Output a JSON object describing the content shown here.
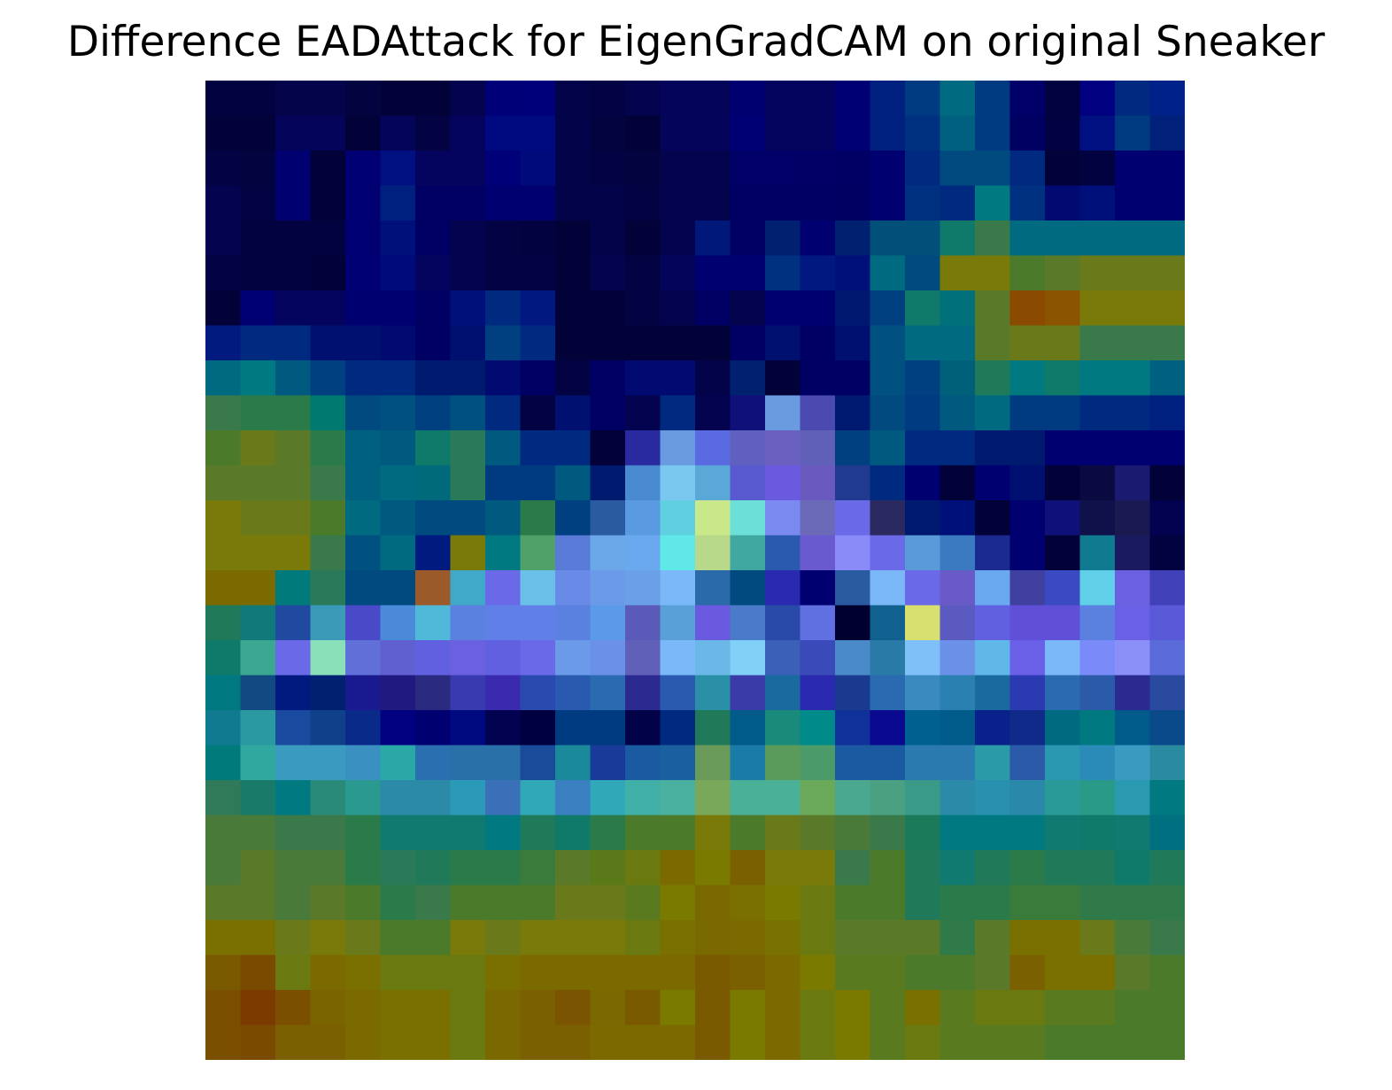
{
  "figure": {
    "title": "Difference EADAttack for EigenGradCAM on original Sneaker"
  },
  "image": {
    "grid_rows": 28,
    "grid_cols": 28,
    "palette": {
      "dark_navy": "#05053f",
      "navy": "#000070",
      "deep_blue": "#002a80",
      "teal_blue": "#005a80",
      "teal": "#007a80",
      "sea_green": "#2a7a5a",
      "olive_green": "#5a7a2a",
      "olive": "#7a7a0a",
      "ochre": "#8a6400",
      "brown": "#8a4400",
      "cornflower": "#6a90e0",
      "violet": "#6a60e0",
      "sky": "#7ac0f0",
      "cyan": "#60e0e8",
      "pale_yellow": "#d8e070",
      "aqua_green": "#40b0a0"
    },
    "rows": [
      [
        "#020240",
        "#020240",
        "#04044a",
        "#04044a",
        "#030340",
        "#020238",
        "#020238",
        "#04044e",
        "#000078",
        "#00007a",
        "#03034a",
        "#030344",
        "#04044e",
        "#04045a",
        "#04045a",
        "#000070",
        "#04045e",
        "#04045e",
        "#000074",
        "#002080",
        "#003a80",
        "#006a80",
        "#003a80",
        "#000068",
        "#020240",
        "#000080",
        "#002a80",
        "#00208a"
      ],
      [
        "#020238",
        "#020238",
        "#04045a",
        "#04045a",
        "#020238",
        "#04045a",
        "#030344",
        "#04045e",
        "#000a80",
        "#000a80",
        "#03034a",
        "#030340",
        "#020238",
        "#04045a",
        "#04045a",
        "#000074",
        "#04045e",
        "#04045e",
        "#000074",
        "#002080",
        "#003080",
        "#006080",
        "#003a80",
        "#000062",
        "#020242",
        "#001080",
        "#003a80",
        "#00207a"
      ],
      [
        "#030344",
        "#030340",
        "#000070",
        "#020238",
        "#000072",
        "#001080",
        "#04045e",
        "#04045e",
        "#000078",
        "#000a7a",
        "#03034a",
        "#030344",
        "#030340",
        "#04044e",
        "#04044e",
        "#000068",
        "#000068",
        "#000066",
        "#000064",
        "#000070",
        "#002a80",
        "#004a80",
        "#004a80",
        "#002a80",
        "#020238",
        "#020240",
        "#000070",
        "#000070"
      ],
      [
        "#030350",
        "#030344",
        "#000070",
        "#020238",
        "#000072",
        "#002080",
        "#000064",
        "#000064",
        "#000070",
        "#000070",
        "#03034a",
        "#03034a",
        "#030344",
        "#04044e",
        "#04044e",
        "#000064",
        "#000064",
        "#000064",
        "#000062",
        "#000070",
        "#003080",
        "#002a80",
        "#007a80",
        "#003080",
        "#000a70",
        "#00107a",
        "#000070",
        "#000070"
      ],
      [
        "#030350",
        "#020240",
        "#020240",
        "#020240",
        "#000072",
        "#00107a",
        "#000064",
        "#04044e",
        "#030344",
        "#020240",
        "#020238",
        "#03034a",
        "#020238",
        "#04044e",
        "#00187a",
        "#000064",
        "#002070",
        "#000070",
        "#002070",
        "#00507a",
        "#00507a",
        "#107a6a",
        "#3a7a4a",
        "#006a80",
        "#006a80",
        "#006a80",
        "#006a80",
        "#006a80"
      ],
      [
        "#030344",
        "#020240",
        "#020240",
        "#020238",
        "#000072",
        "#000a7a",
        "#04045e",
        "#04044e",
        "#030344",
        "#030344",
        "#020238",
        "#04044e",
        "#030344",
        "#04045a",
        "#000070",
        "#000070",
        "#003080",
        "#001880",
        "#00107a",
        "#006a80",
        "#004a80",
        "#7a7a0a",
        "#7a7a0a",
        "#4a7a2a",
        "#5a7a2a",
        "#6a7a1a",
        "#6a7a1a",
        "#6a7a1a"
      ],
      [
        "#020238",
        "#000072",
        "#04045e",
        "#04045e",
        "#000070",
        "#000070",
        "#000064",
        "#00107a",
        "#002a80",
        "#001880",
        "#020238",
        "#020238",
        "#030344",
        "#04044e",
        "#000064",
        "#04044e",
        "#000070",
        "#000070",
        "#001870",
        "#004080",
        "#107a6a",
        "#00707a",
        "#5a7a2a",
        "#8a4a00",
        "#8a5400",
        "#7a7a0a",
        "#7a7a0a",
        "#7a7a0a"
      ],
      [
        "#001a80",
        "#002a80",
        "#002a80",
        "#001070",
        "#001070",
        "#000a70",
        "#000064",
        "#001070",
        "#004080",
        "#002a80",
        "#020238",
        "#020238",
        "#020238",
        "#020238",
        "#020238",
        "#000064",
        "#001070",
        "#000064",
        "#001070",
        "#005080",
        "#006a80",
        "#006a80",
        "#5a7a2a",
        "#6a7a1a",
        "#6a7a1a",
        "#3a7a4a",
        "#3a7a4a",
        "#3a7a4a"
      ],
      [
        "#006a80",
        "#007a80",
        "#005a80",
        "#004080",
        "#002a80",
        "#002a80",
        "#001a70",
        "#001a70",
        "#000a70",
        "#000064",
        "#030344",
        "#000064",
        "#000a70",
        "#000a70",
        "#03034a",
        "#002070",
        "#020238",
        "#000064",
        "#000064",
        "#005080",
        "#004080",
        "#00607a",
        "#207a5a",
        "#007a80",
        "#107a6a",
        "#007a80",
        "#007a80",
        "#006080"
      ],
      [
        "#3a7a4a",
        "#2a7a4a",
        "#2a7a4a",
        "#007a70",
        "#004a80",
        "#005080",
        "#004080",
        "#005080",
        "#002a80",
        "#030344",
        "#001070",
        "#000064",
        "#030350",
        "#002a80",
        "#030350",
        "#10107a",
        "#6a9ae0",
        "#4a4ab0",
        "#001a70",
        "#004a80",
        "#003a80",
        "#005a80",
        "#006a80",
        "#003a80",
        "#003a80",
        "#002a80",
        "#002a80",
        "#002080"
      ],
      [
        "#4a7a2a",
        "#6a7a1a",
        "#5a7a2a",
        "#2a7a4a",
        "#006080",
        "#005a80",
        "#107a6a",
        "#2a7a5a",
        "#005a80",
        "#002a80",
        "#002a80",
        "#020238",
        "#2a2aa0",
        "#6a9ae0",
        "#5a6ae0",
        "#6060c0",
        "#6a60c0",
        "#6060b8",
        "#004080",
        "#005a80",
        "#002a80",
        "#002a80",
        "#001a70",
        "#001a70",
        "#000070",
        "#000070",
        "#000070",
        "#000070"
      ],
      [
        "#5a7a2a",
        "#5a7a2a",
        "#5a7a2a",
        "#3a7a4a",
        "#006080",
        "#006a80",
        "#006a7a",
        "#2a7a5a",
        "#003a80",
        "#003a80",
        "#005a80",
        "#001a70",
        "#4a8ad0",
        "#7ac8f0",
        "#5aa8d8",
        "#5a5ad0",
        "#6a5ae0",
        "#6a5ac0",
        "#203a90",
        "#002a80",
        "#000070",
        "#020238",
        "#000070",
        "#001070",
        "#020238",
        "#0a0a40",
        "#1a1a70",
        "#020238"
      ],
      [
        "#7a7a0a",
        "#6a7a1a",
        "#6a7a1a",
        "#4a7a2a",
        "#006a80",
        "#005a80",
        "#004a80",
        "#004a80",
        "#005a80",
        "#2a7a4a",
        "#004080",
        "#2a5aa0",
        "#5a9ae0",
        "#60d0e0",
        "#c8e88a",
        "#6ae0d8",
        "#7a8af0",
        "#6a6ab8",
        "#6a6ae8",
        "#2a2a60",
        "#001a70",
        "#00107a",
        "#020238",
        "#000070",
        "#10107a",
        "#10104a",
        "#1a1a50",
        "#020250"
      ],
      [
        "#7a7a0a",
        "#7a7a0a",
        "#7a7a0a",
        "#3a7a4a",
        "#005080",
        "#006a80",
        "#001a80",
        "#7a7a0a",
        "#007a80",
        "#50a06a",
        "#5a7ad8",
        "#6aa8e8",
        "#6aa8f0",
        "#60e8e8",
        "#b8d88a",
        "#40a8a0",
        "#2a5ab0",
        "#6a5ad0",
        "#8a8af8",
        "#6a6ae8",
        "#5a9ad8",
        "#3a7ac0",
        "#1a2a90",
        "#000070",
        "#020238",
        "#107a90",
        "#1a1a60",
        "#020240"
      ],
      [
        "#7a6a00",
        "#7a6a00",
        "#007a7a",
        "#2a7a5a",
        "#004a80",
        "#004a80",
        "#9a5a2a",
        "#40a8c8",
        "#6a6ae8",
        "#6ac0e8",
        "#6a8ae8",
        "#6a9ae8",
        "#6aa0e8",
        "#7ab8f8",
        "#2a6aa8",
        "#004a80",
        "#2a2ab0",
        "#000070",
        "#2a5aa0",
        "#7ab8f8",
        "#6a6ae8",
        "#6a5ac8",
        "#6aa8f0",
        "#4040a0",
        "#3a4ac0",
        "#60d0e8",
        "#6a60e0",
        "#4040b8"
      ],
      [
        "#207a5a",
        "#107a7a",
        "#204aa0",
        "#3a9ab8",
        "#4a4ac8",
        "#4a8ad8",
        "#50b8d8",
        "#5a80e0",
        "#6080e8",
        "#6080e8",
        "#5a80e0",
        "#5a9ae8",
        "#5a5ab8",
        "#5aa0d8",
        "#6a5ae0",
        "#4a7ac8",
        "#2a4aa8",
        "#6070e0",
        "#000030",
        "#106090",
        "#d8e070",
        "#5a5ac0",
        "#6060e0",
        "#6050d8",
        "#6050d8",
        "#5a80e0",
        "#6a60e8",
        "#5a5ad8"
      ],
      [
        "#107a6a",
        "#3aa890",
        "#6a6ae8",
        "#8ae0b8",
        "#6070d8",
        "#6060d0",
        "#6060e0",
        "#6a60e0",
        "#6060e0",
        "#6a6ae8",
        "#6a9ae8",
        "#6a90e8",
        "#6060b8",
        "#7ab8f8",
        "#6ab8e8",
        "#80d0f8",
        "#3a60b8",
        "#3a4ab8",
        "#4a8ac8",
        "#2a7aa8",
        "#80c0f8",
        "#6a90e8",
        "#60b8e8",
        "#6a60e8",
        "#7ab8f8",
        "#7a8af8",
        "#8a90f8",
        "#5a6ad8"
      ],
      [
        "#007a80",
        "#104a80",
        "#001a80",
        "#002070",
        "#1a1a90",
        "#201a80",
        "#2a2a80",
        "#3a3ab0",
        "#3a2ab0",
        "#2a4ab0",
        "#2a5ab0",
        "#2a6ab0",
        "#2a2a90",
        "#2a5ab0",
        "#2a90a8",
        "#3a3aa8",
        "#1a6aa0",
        "#2a2ab0",
        "#1a3a90",
        "#2a6ab0",
        "#3a8ac0",
        "#2a80b0",
        "#1a6aa0",
        "#2a3ab0",
        "#2a6ab0",
        "#2a5aa8",
        "#2a2a90",
        "#2a4aa0"
      ],
      [
        "#107a90",
        "#2a9aa0",
        "#1a4aa0",
        "#10408a",
        "#0a2a8a",
        "#000080",
        "#000070",
        "#000a80",
        "#020250",
        "#000040",
        "#003a80",
        "#003a80",
        "#020248",
        "#002a80",
        "#207a5a",
        "#005a8a",
        "#1a8a7a",
        "#008a8a",
        "#10309a",
        "#0a0a90",
        "#006090",
        "#005a8a",
        "#0a208a",
        "#102a8a",
        "#006a80",
        "#007a80",
        "#005a8a",
        "#0a4a8a"
      ],
      [
        "#007a7a",
        "#30a8a0",
        "#3a9ac0",
        "#3a9ac0",
        "#3a90c0",
        "#2aa8a8",
        "#2a70b0",
        "#2a70a8",
        "#2a70a8",
        "#1a4a9a",
        "#1a8a9a",
        "#1a3a9a",
        "#1a5aa0",
        "#1a60a0",
        "#6a9a5a",
        "#1a7aa8",
        "#5a9a5a",
        "#4a9a6a",
        "#1a5aa0",
        "#1a5aa0",
        "#2a7ab0",
        "#2a7ab0",
        "#2a9aa8",
        "#2a5aa8",
        "#2a98b0",
        "#2a8ab8",
        "#3a9ac0",
        "#2a8aa0"
      ],
      [
        "#307a5a",
        "#1a7a6a",
        "#007a80",
        "#2a8a7a",
        "#2a9a90",
        "#2a8aa8",
        "#2a8aa8",
        "#2a9ab8",
        "#3a70b8",
        "#30a8b8",
        "#3a80c0",
        "#30a8b8",
        "#40b0a8",
        "#4ab0a0",
        "#7aa85a",
        "#4ab098",
        "#4ab098",
        "#6aa85a",
        "#4aa890",
        "#4aa080",
        "#3a9a88",
        "#2a8aa8",
        "#2a90b0",
        "#2a88a8",
        "#2a9a98",
        "#2a9a88",
        "#2a9ab0",
        "#007a80"
      ],
      [
        "#4a7a3a",
        "#4a7a3a",
        "#3a7a4a",
        "#3a7a4a",
        "#2a7a4a",
        "#107a70",
        "#107a70",
        "#107a70",
        "#007a80",
        "#207a5a",
        "#107a6a",
        "#2a7a4a",
        "#4a7a2a",
        "#4a7a2a",
        "#7a7a0a",
        "#4a7a2a",
        "#6a7a1a",
        "#5a7a2a",
        "#4a7a3a",
        "#3a7a4a",
        "#1a7a5a",
        "#007a80",
        "#007a80",
        "#007a80",
        "#107a70",
        "#107a6a",
        "#107a70",
        "#007080"
      ],
      [
        "#4a7a3a",
        "#5a7a2a",
        "#4a7a3a",
        "#4a7a3a",
        "#2a7a4a",
        "#2a7a5a",
        "#207a5a",
        "#2a7a4a",
        "#2a7a4a",
        "#3a7a3a",
        "#5a7a2a",
        "#5a7a1a",
        "#6a7a10",
        "#7a6a00",
        "#7a7a00",
        "#7a6000",
        "#7a7a0a",
        "#7a7a0a",
        "#3a7a4a",
        "#4a7a2a",
        "#207a5a",
        "#107a70",
        "#207a5a",
        "#2a7a4a",
        "#207a5a",
        "#207a5a",
        "#107a6a",
        "#207a5a"
      ],
      [
        "#5a7a2a",
        "#5a7a2a",
        "#4a7a3a",
        "#5a7a2a",
        "#4a7a2a",
        "#2a7a4a",
        "#3a7a4a",
        "#4a7a2a",
        "#4a7a2a",
        "#4a7a2a",
        "#6a7a1a",
        "#6a7a1a",
        "#5a7a20",
        "#7a7a00",
        "#7a6800",
        "#7a7000",
        "#7a7a00",
        "#6a7a10",
        "#4a7a2a",
        "#4a7a2a",
        "#207a5a",
        "#2a7a4a",
        "#2a7a4a",
        "#3a7a3a",
        "#3a7a3a",
        "#307a4a",
        "#307a4a",
        "#307a4a"
      ],
      [
        "#7a7000",
        "#7a7000",
        "#6a7a1a",
        "#7a7a0a",
        "#6a7a1a",
        "#4a7a2a",
        "#4a7a2a",
        "#7a7a0a",
        "#6a7a1a",
        "#7a7a0a",
        "#7a7a0a",
        "#7a7a0a",
        "#6a7a10",
        "#7a7000",
        "#7a6800",
        "#7a6a00",
        "#7a7200",
        "#6a7a10",
        "#5a7a2a",
        "#5a7a2a",
        "#5a7a2a",
        "#307a4a",
        "#5a7a2a",
        "#7a7000",
        "#7a7000",
        "#6a7a1a",
        "#4a7a3a",
        "#3a7a4a"
      ],
      [
        "#7a5a00",
        "#7a4a00",
        "#6a7a10",
        "#7a6a00",
        "#7a7000",
        "#6a7a10",
        "#6a7a10",
        "#6a7a10",
        "#7a7000",
        "#7a6a00",
        "#7a6a00",
        "#7a6a00",
        "#7a6a00",
        "#7a6a00",
        "#7a5a00",
        "#7a6000",
        "#7a6a00",
        "#7a7a00",
        "#5a7a20",
        "#5a7a20",
        "#4a7a2a",
        "#4a7a2a",
        "#5a7a2a",
        "#7a6000",
        "#7a7000",
        "#7a7000",
        "#5a7a2a",
        "#4a7a2a"
      ],
      [
        "#7a5000",
        "#7a3a00",
        "#7a5000",
        "#7a6400",
        "#7a6a00",
        "#7a7000",
        "#7a7000",
        "#6a7a10",
        "#7a6800",
        "#7a6000",
        "#7a5400",
        "#7a6800",
        "#7a5a00",
        "#7a7a00",
        "#7a5a00",
        "#7a7a00",
        "#7a6a00",
        "#6a7a10",
        "#7a7a00",
        "#5a7a20",
        "#7a7000",
        "#5a7a20",
        "#6a7a10",
        "#6a7a10",
        "#5a7a20",
        "#5a7a20",
        "#4a7a2a",
        "#4a7a2a"
      ],
      [
        "#7a5000",
        "#7a4a00",
        "#7a6000",
        "#7a6000",
        "#7a6a00",
        "#7a7000",
        "#7a7000",
        "#6a7a10",
        "#7a6800",
        "#7a6000",
        "#7a6000",
        "#7a6a00",
        "#7a6a00",
        "#7a6a00",
        "#7a5a00",
        "#7a7a00",
        "#7a6a00",
        "#6a7a10",
        "#7a7a00",
        "#5a7a20",
        "#6a7a10",
        "#5a7a20",
        "#5a7a20",
        "#5a7a20",
        "#4a7a2a",
        "#4a7a2a",
        "#4a7a2a",
        "#4a7a2a"
      ]
    ]
  }
}
